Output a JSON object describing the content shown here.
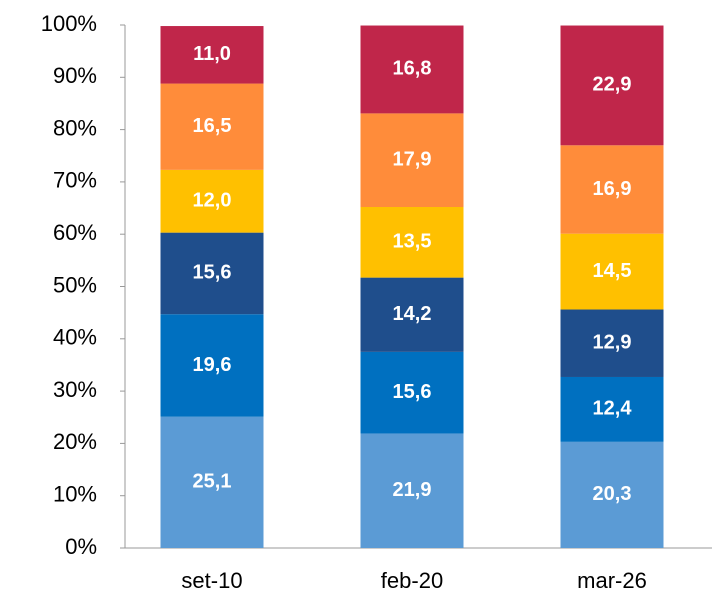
{
  "chart_data": {
    "type": "stacked-bar",
    "categories": [
      "set-10",
      "feb-20",
      "mar-26"
    ],
    "series": [
      {
        "color": "#5b9bd5",
        "values": [
          25.1,
          21.9,
          20.3
        ],
        "value_labels": [
          "25,1",
          "21,9",
          "20,3"
        ]
      },
      {
        "color": "#0070c0",
        "values": [
          19.6,
          15.6,
          12.4
        ],
        "value_labels": [
          "19,6",
          "15,6",
          "12,4"
        ]
      },
      {
        "color": "#1f4e8c",
        "values": [
          15.6,
          14.2,
          12.9
        ],
        "value_labels": [
          "15,6",
          "14,2",
          "12,9"
        ]
      },
      {
        "color": "#ffc000",
        "values": [
          12.0,
          13.5,
          14.5
        ],
        "value_labels": [
          "12,0",
          "13,5",
          "14,5"
        ]
      },
      {
        "color": "#ff8c3a",
        "values": [
          16.5,
          17.9,
          16.9
        ],
        "value_labels": [
          "16,5",
          "17,9",
          "16,9"
        ]
      },
      {
        "color": "#c0264a",
        "values": [
          11.0,
          16.8,
          22.9
        ],
        "value_labels": [
          "11,0",
          "16,8",
          "22,9"
        ]
      }
    ],
    "ylim": [
      0,
      100
    ],
    "yticks": [
      {
        "value": 0,
        "label": "0%"
      },
      {
        "value": 10,
        "label": "10%"
      },
      {
        "value": 20,
        "label": "20%"
      },
      {
        "value": 30,
        "label": "30%"
      },
      {
        "value": 40,
        "label": "40%"
      },
      {
        "value": 50,
        "label": "50%"
      },
      {
        "value": 60,
        "label": "60%"
      },
      {
        "value": 70,
        "label": "70%"
      },
      {
        "value": 80,
        "label": "80%"
      },
      {
        "value": 90,
        "label": "90%"
      },
      {
        "value": 100,
        "label": "100%"
      }
    ],
    "grid": false
  }
}
